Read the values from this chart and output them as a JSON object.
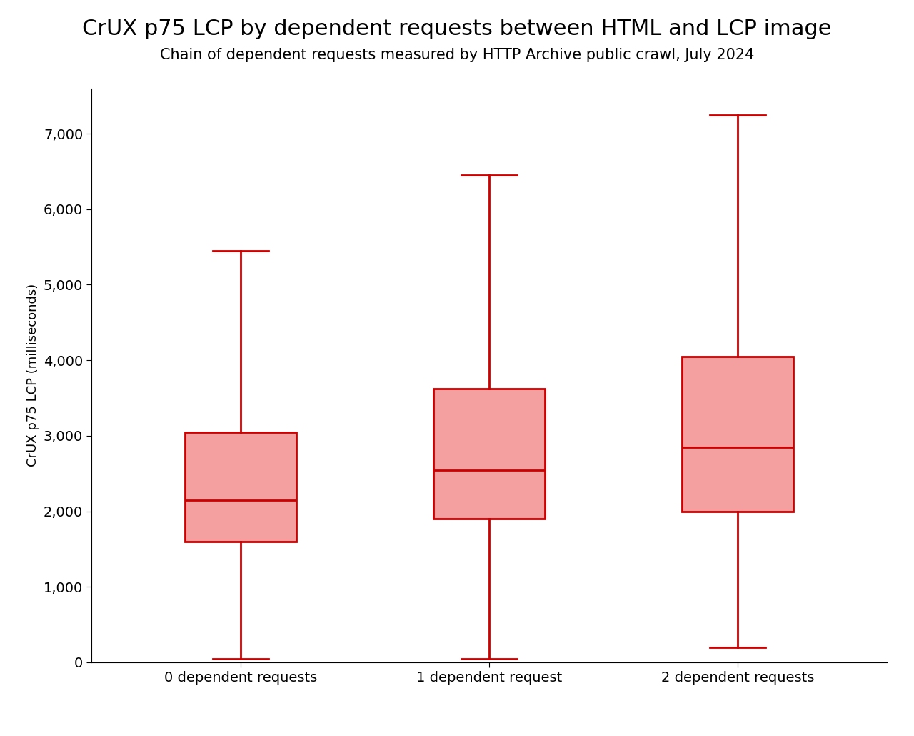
{
  "title": "CrUX p75 LCP by dependent requests between HTML and LCP image",
  "subtitle": "Chain of dependent requests measured by HTTP Archive public crawl, July 2024",
  "ylabel": "CrUX p75 LCP (milliseconds)",
  "categories": [
    "0 dependent requests",
    "1 dependent request",
    "2 dependent requests"
  ],
  "box_data": [
    {
      "whislo": 50,
      "q1": 1600,
      "med": 2150,
      "q3": 3050,
      "whishi": 5450
    },
    {
      "whislo": 50,
      "q1": 1900,
      "med": 2540,
      "q3": 3620,
      "whishi": 6450
    },
    {
      "whislo": 200,
      "q1": 2000,
      "med": 2850,
      "q3": 4050,
      "whishi": 7250
    }
  ],
  "box_color": "#f4a0a0",
  "median_color": "#cc0000",
  "whisker_color": "#cc0000",
  "box_edge_color": "#cc0000",
  "ylim": [
    0,
    7600
  ],
  "yticks": [
    0,
    1000,
    2000,
    3000,
    4000,
    5000,
    6000,
    7000
  ],
  "background_color": "#ffffff",
  "title_fontsize": 22,
  "subtitle_fontsize": 15,
  "ylabel_fontsize": 13,
  "tick_fontsize": 14
}
